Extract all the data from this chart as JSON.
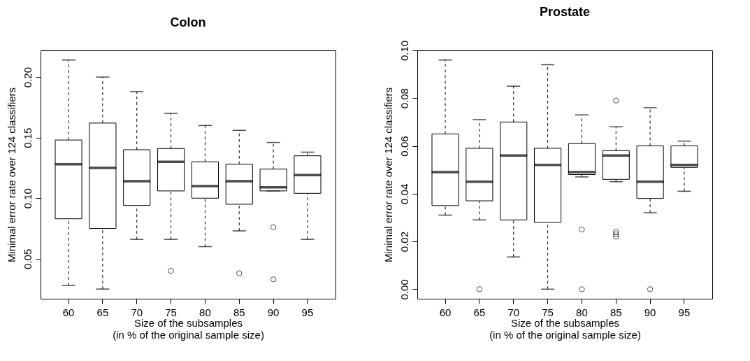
{
  "chart_data": [
    {
      "type": "box",
      "title": "Colon",
      "xlabel": "Size of the subsamples\n(in % of the original sample size)",
      "ylabel": "Minimal error rate over 124 classifiers",
      "categories": [
        "60",
        "65",
        "70",
        "75",
        "80",
        "85",
        "90",
        "95"
      ],
      "ylim": [
        0.017,
        0.222
      ],
      "yticks": [
        {
          "value": 0.05,
          "label": "0.05"
        },
        {
          "value": 0.1,
          "label": "0.10"
        },
        {
          "value": 0.15,
          "label": "0.15"
        },
        {
          "value": 0.2,
          "label": "0.20"
        }
      ],
      "boxes": [
        {
          "low": 0.028,
          "q1": 0.083,
          "median": 0.128,
          "q3": 0.148,
          "high": 0.214
        },
        {
          "low": 0.025,
          "q1": 0.075,
          "median": 0.125,
          "q3": 0.162,
          "high": 0.2
        },
        {
          "low": 0.066,
          "q1": 0.094,
          "median": 0.114,
          "q3": 0.14,
          "high": 0.188
        },
        {
          "low": 0.066,
          "q1": 0.106,
          "median": 0.13,
          "q3": 0.141,
          "high": 0.17,
          "outliers": [
            0.04
          ]
        },
        {
          "low": 0.06,
          "q1": 0.1,
          "median": 0.11,
          "q3": 0.13,
          "high": 0.16
        },
        {
          "low": 0.073,
          "q1": 0.095,
          "median": 0.114,
          "q3": 0.128,
          "high": 0.156,
          "outliers": [
            0.038
          ]
        },
        {
          "low": 0.106,
          "q1": 0.106,
          "median": 0.109,
          "q3": 0.124,
          "high": 0.146,
          "outliers": [
            0.076,
            0.033
          ]
        },
        {
          "low": 0.066,
          "q1": 0.104,
          "median": 0.119,
          "q3": 0.135,
          "high": 0.138
        }
      ]
    },
    {
      "type": "box",
      "title": "Prostate",
      "xlabel": "Size of the subsamples\n(in % of the original sample size)",
      "ylabel": "Minimal error rate over 124 classifiers",
      "categories": [
        "60",
        "65",
        "70",
        "75",
        "80",
        "85",
        "90",
        "95"
      ],
      "ylim": [
        -0.004,
        0.1
      ],
      "yticks": [
        {
          "value": 0,
          "label": "0.00"
        },
        {
          "value": 0.02,
          "label": "0.02"
        },
        {
          "value": 0.04,
          "label": "0.04"
        },
        {
          "value": 0.06,
          "label": "0.06"
        },
        {
          "value": 0.08,
          "label": "0.08"
        },
        {
          "value": 0.1,
          "label": "0.10"
        }
      ],
      "boxes": [
        {
          "low": 0.031,
          "q1": 0.035,
          "median": 0.049,
          "q3": 0.065,
          "high": 0.096
        },
        {
          "low": 0.029,
          "q1": 0.037,
          "median": 0.045,
          "q3": 0.059,
          "high": 0.071,
          "outliers": [
            0
          ]
        },
        {
          "low": 0.0135,
          "q1": 0.029,
          "median": 0.056,
          "q3": 0.07,
          "high": 0.085
        },
        {
          "low": 0,
          "q1": 0.028,
          "median": 0.052,
          "q3": 0.059,
          "high": 0.094
        },
        {
          "low": 0.047,
          "q1": 0.048,
          "median": 0.049,
          "q3": 0.061,
          "high": 0.073,
          "outliers": [
            0.025,
            0
          ]
        },
        {
          "low": 0.045,
          "q1": 0.046,
          "median": 0.056,
          "q3": 0.058,
          "high": 0.068,
          "outliers": [
            0.079,
            0.024,
            0.023,
            0.022
          ]
        },
        {
          "low": 0.032,
          "q1": 0.038,
          "median": 0.045,
          "q3": 0.06,
          "high": 0.076,
          "outliers": [
            0
          ]
        },
        {
          "low": 0.041,
          "q1": 0.051,
          "median": 0.052,
          "q3": 0.06,
          "high": 0.062
        }
      ]
    }
  ]
}
